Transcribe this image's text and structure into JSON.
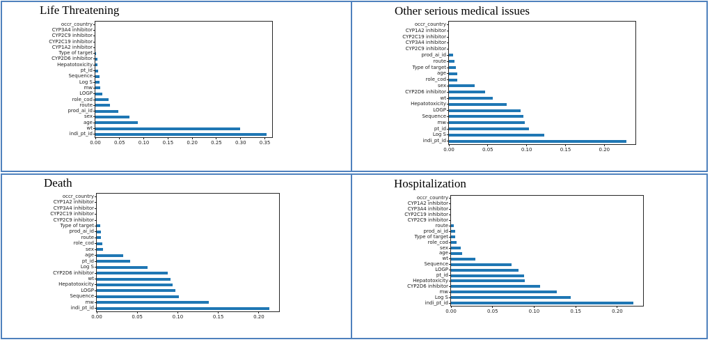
{
  "page": {
    "background": "#ffffff"
  },
  "table": {
    "border_color": "#4f81bd",
    "rows": 2,
    "cols": 2
  },
  "chart_style": {
    "bar_color": "#1f77b4",
    "spine_color": "#262626",
    "tick_label_color": "#1a1a1a"
  },
  "chart_data": [
    {
      "type": "bar",
      "orientation": "horizontal",
      "title": "Life Threatening",
      "categories": [
        "occr_country",
        "CYP3A4 inhibitor",
        "CYP2C9 inhibitor",
        "CYP2C19 inhibitor",
        "CYP1A2 inhibitor",
        "Type of target",
        "CYP2D6 inhibitor",
        "Hepatotoxicity",
        "pt_id",
        "Sequence",
        "Log S",
        "mw",
        "LOGP",
        "role_cod",
        "route",
        "prod_ai_id",
        "sex",
        "age",
        "wt",
        "indi_pt_id"
      ],
      "values": [
        0.0,
        0.0,
        0.0,
        0.0,
        0.0,
        0.001,
        0.005,
        0.005,
        0.006,
        0.008,
        0.008,
        0.01,
        0.015,
        0.028,
        0.03,
        0.047,
        0.071,
        0.087,
        0.299,
        0.353
      ],
      "xlim": [
        0,
        0.365
      ],
      "xticks": [
        "0.00",
        "0.05",
        "0.10",
        "0.15",
        "0.20",
        "0.25",
        "0.30",
        "0.35"
      ],
      "grid": false,
      "legend": null
    },
    {
      "type": "bar",
      "orientation": "horizontal",
      "title": "Other serious medical issues",
      "categories": [
        "occr_country",
        "CYP1A2 inhibitor",
        "CYP2C19 inhibitor",
        "CYP3A4 inhibitor",
        "CYP2C9 inhibitor",
        "prod_ai_id",
        "route",
        "Type of target",
        "age",
        "role_cod",
        "sex",
        "CYP2D6 inhibitor",
        "wt",
        "Hepatotoxicity",
        "LOGP",
        "Sequence",
        "mw",
        "pt_id",
        "Log S",
        "indi_pt_id"
      ],
      "values": [
        0.0,
        0.0,
        0.0,
        0.0,
        0.0,
        0.005,
        0.007,
        0.009,
        0.011,
        0.011,
        0.033,
        0.047,
        0.056,
        0.074,
        0.092,
        0.096,
        0.098,
        0.103,
        0.123,
        0.228
      ],
      "xlim": [
        0,
        0.24
      ],
      "xticks": [
        "0.00",
        "0.05",
        "0.10",
        "0.15",
        "0.20"
      ],
      "grid": false,
      "legend": null
    },
    {
      "type": "bar",
      "orientation": "horizontal",
      "title": "Death",
      "categories": [
        "occr_country",
        "CYP1A2 inhibitor",
        "CYP3A4 inhibitor",
        "CYP2C19 inhibitor",
        "CYP2C9 inhibitor",
        "Type of target",
        "prod_ai_id",
        "route",
        "role_cod",
        "sex",
        "age",
        "pt_id",
        "Log S",
        "CYP2D6 inhibitor",
        "wt",
        "Hepatotoxicity",
        "LOGP",
        "Sequence",
        "mw",
        "indi_pt_id"
      ],
      "values": [
        0.0,
        0.0,
        0.0,
        0.0,
        0.0,
        0.004,
        0.005,
        0.005,
        0.007,
        0.008,
        0.033,
        0.041,
        0.063,
        0.088,
        0.091,
        0.094,
        0.097,
        0.101,
        0.138,
        0.213
      ],
      "xlim": [
        0,
        0.225
      ],
      "xticks": [
        "0.00",
        "0.05",
        "0.10",
        "0.15",
        "0.20"
      ],
      "grid": false,
      "legend": null
    },
    {
      "type": "bar",
      "orientation": "horizontal",
      "title": "Hospitalization",
      "categories": [
        "occr_country",
        "CYP1A2 inhibitor",
        "CYP3A4 inhibitor",
        "CYP2C19 inhibitor",
        "CYP2C9 inhibitor",
        "route",
        "prod_ai_id",
        "Type of target",
        "role_cod",
        "sex",
        "age",
        "wt",
        "Sequence",
        "LOGP",
        "pt_id",
        "Hepatotoxicity",
        "CYP2D6 inhibitor",
        "mw",
        "Log S",
        "indi_pt_id"
      ],
      "values": [
        0.0,
        0.0,
        0.0,
        0.0,
        0.0,
        0.003,
        0.005,
        0.005,
        0.007,
        0.012,
        0.013,
        0.029,
        0.073,
        0.081,
        0.088,
        0.089,
        0.107,
        0.127,
        0.144,
        0.219
      ],
      "xlim": [
        0,
        0.231
      ],
      "xticks": [
        "0.00",
        "0.05",
        "0.10",
        "0.15",
        "0.20"
      ],
      "grid": false,
      "legend": null
    }
  ]
}
